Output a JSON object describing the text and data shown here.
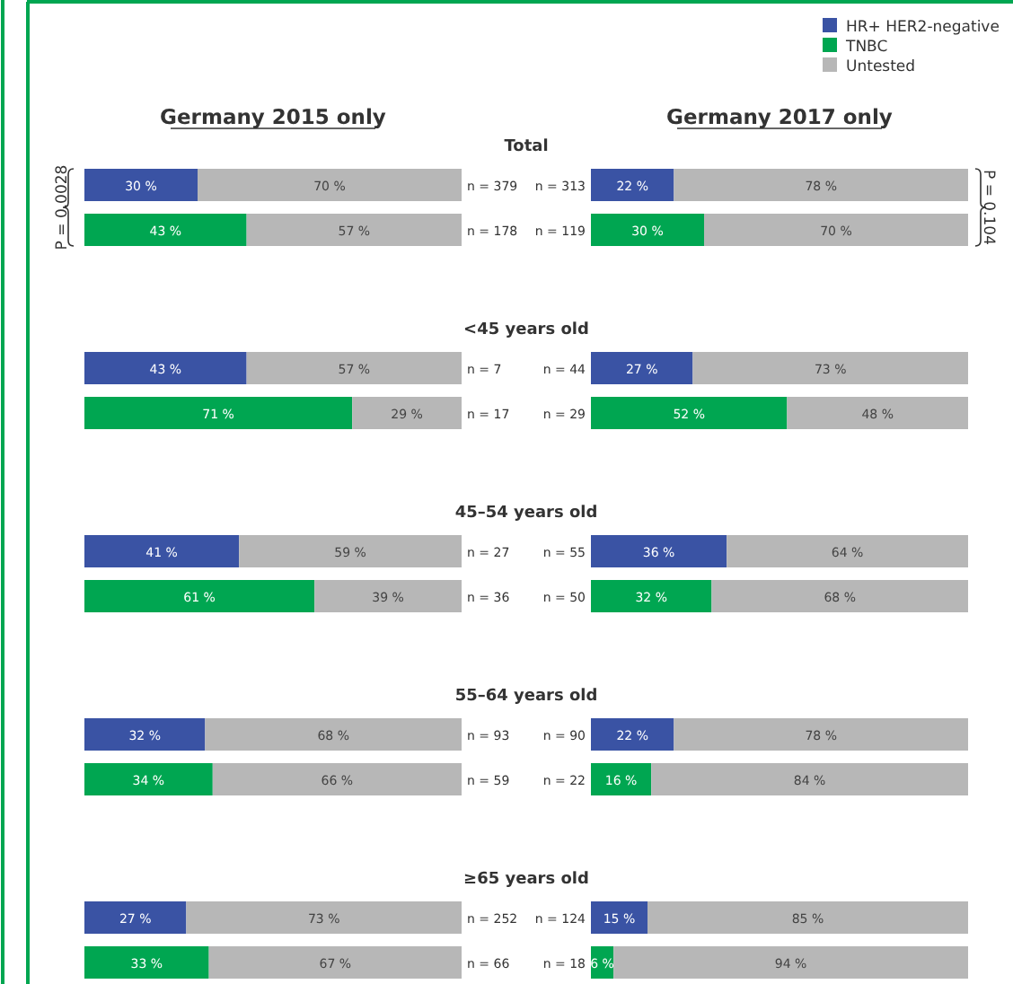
{
  "chart_data": [
    {
      "type": "bar",
      "orientation": "horizontal",
      "stacked": true,
      "title": "Germany 2015 only",
      "subtitle": "Total",
      "categories": [
        "n = 379",
        "n = 178"
      ],
      "xlim": [
        0,
        100
      ],
      "tick_labels": "y",
      "legend": false,
      "annotations": [
        "P = 0.0028"
      ],
      "series": [
        {
          "color": "#3a53a4",
          "values": [
            30,
            null
          ],
          "value_labels": [
            "30 %",
            null
          ]
        },
        {
          "color": "#00a651",
          "values": [
            null,
            43
          ],
          "value_labels": [
            null,
            "43 %"
          ]
        },
        {
          "color": "#b7b7b7",
          "values": [
            70,
            57
          ],
          "value_labels": [
            "70 %",
            "57 %"
          ]
        }
      ]
    },
    {
      "type": "bar",
      "orientation": "horizontal",
      "stacked": true,
      "title": "Germany 2017 only",
      "categories": [
        "n = 313",
        "n = 119"
      ],
      "xlim": [
        0,
        100
      ],
      "tick_labels": "y",
      "legend": "top right",
      "annotations": [
        "P = 0.104"
      ],
      "series": [
        {
          "name": "HR+ HER2-negative",
          "color": "#3a53a4",
          "values": [
            22,
            null
          ],
          "value_labels": [
            "22 %",
            null
          ]
        },
        {
          "name": "TNBC",
          "color": "#00a651",
          "values": [
            null,
            30
          ],
          "value_labels": [
            null,
            "30 %"
          ]
        },
        {
          "name": "Untested",
          "color": "#b7b7b7",
          "values": [
            78,
            70
          ],
          "value_labels": [
            "78 %",
            "70 %"
          ]
        }
      ]
    },
    {
      "type": "bar",
      "orientation": "horizontal",
      "stacked": true,
      "subtitle": "<45 years old",
      "categories": [
        "n = 7",
        "n = 17"
      ],
      "xlim": [
        0,
        100
      ],
      "tick_labels": "y",
      "series": [
        {
          "color": "#3a53a4",
          "values": [
            43,
            null
          ],
          "value_labels": [
            "43 %",
            null
          ]
        },
        {
          "color": "#00a651",
          "values": [
            null,
            71
          ],
          "value_labels": [
            null,
            "71 %"
          ]
        },
        {
          "color": "#b7b7b7",
          "values": [
            57,
            29
          ],
          "value_labels": [
            "57 %",
            "29 %"
          ]
        }
      ]
    },
    {
      "type": "bar",
      "orientation": "horizontal",
      "stacked": true,
      "categories": [
        "n = 44",
        "n = 29"
      ],
      "xlim": [
        0,
        100
      ],
      "tick_labels": "y",
      "series": [
        {
          "color": "#3a53a4",
          "values": [
            27,
            null
          ],
          "value_labels": [
            "27 %",
            null
          ]
        },
        {
          "color": "#00a651",
          "values": [
            null,
            52
          ],
          "value_labels": [
            null,
            "52 %"
          ]
        },
        {
          "color": "#b7b7b7",
          "values": [
            73,
            48
          ],
          "value_labels": [
            "73 %",
            "48 %"
          ]
        }
      ]
    },
    {
      "type": "bar",
      "orientation": "horizontal",
      "stacked": true,
      "subtitle": "45–54 years old",
      "categories": [
        "n = 27",
        "n = 36"
      ],
      "xlim": [
        0,
        100
      ],
      "tick_labels": "y",
      "series": [
        {
          "color": "#3a53a4",
          "values": [
            41,
            null
          ],
          "value_labels": [
            "41 %",
            null
          ]
        },
        {
          "color": "#00a651",
          "values": [
            null,
            61
          ],
          "value_labels": [
            null,
            "61 %"
          ]
        },
        {
          "color": "#b7b7b7",
          "values": [
            59,
            39
          ],
          "value_labels": [
            "59 %",
            "39 %"
          ]
        }
      ]
    },
    {
      "type": "bar",
      "orientation": "horizontal",
      "stacked": true,
      "categories": [
        "n = 55",
        "n = 50"
      ],
      "xlim": [
        0,
        100
      ],
      "tick_labels": "y",
      "series": [
        {
          "color": "#3a53a4",
          "values": [
            36,
            null
          ],
          "value_labels": [
            "36 %",
            null
          ]
        },
        {
          "color": "#00a651",
          "values": [
            null,
            32
          ],
          "value_labels": [
            null,
            "32 %"
          ]
        },
        {
          "color": "#b7b7b7",
          "values": [
            64,
            68
          ],
          "value_labels": [
            "64 %",
            "68 %"
          ]
        }
      ]
    },
    {
      "type": "bar",
      "orientation": "horizontal",
      "stacked": true,
      "subtitle": "55–64 years old",
      "categories": [
        "n = 93",
        "n = 59"
      ],
      "xlim": [
        0,
        100
      ],
      "tick_labels": "y",
      "series": [
        {
          "color": "#3a53a4",
          "values": [
            32,
            null
          ],
          "value_labels": [
            "32 %",
            null
          ]
        },
        {
          "color": "#00a651",
          "values": [
            null,
            34
          ],
          "value_labels": [
            null,
            "34 %"
          ]
        },
        {
          "color": "#b7b7b7",
          "values": [
            68,
            66
          ],
          "value_labels": [
            "68 %",
            "66 %"
          ]
        }
      ]
    },
    {
      "type": "bar",
      "orientation": "horizontal",
      "stacked": true,
      "categories": [
        "n = 90",
        "n = 22"
      ],
      "xlim": [
        0,
        100
      ],
      "tick_labels": "y",
      "series": [
        {
          "color": "#3a53a4",
          "values": [
            22,
            null
          ],
          "value_labels": [
            "22 %",
            null
          ]
        },
        {
          "color": "#00a651",
          "values": [
            null,
            16
          ],
          "value_labels": [
            null,
            "16 %"
          ]
        },
        {
          "color": "#b7b7b7",
          "values": [
            78,
            84
          ],
          "value_labels": [
            "78 %",
            "84 %"
          ]
        }
      ]
    },
    {
      "type": "bar",
      "orientation": "horizontal",
      "stacked": true,
      "subtitle": "≥65 years old",
      "categories": [
        "n = 252",
        "n = 66"
      ],
      "xlim": [
        0,
        100
      ],
      "tick_labels": "y",
      "series": [
        {
          "color": "#3a53a4",
          "values": [
            27,
            null
          ],
          "value_labels": [
            "27 %",
            null
          ]
        },
        {
          "color": "#00a651",
          "values": [
            null,
            33
          ],
          "value_labels": [
            null,
            "33 %"
          ]
        },
        {
          "color": "#b7b7b7",
          "values": [
            73,
            67
          ],
          "value_labels": [
            "73 %",
            "67 %"
          ]
        }
      ]
    },
    {
      "type": "bar",
      "orientation": "horizontal",
      "stacked": true,
      "categories": [
        "n = 124",
        "n = 18"
      ],
      "xlim": [
        0,
        100
      ],
      "tick_labels": "y",
      "series": [
        {
          "color": "#3a53a4",
          "values": [
            15,
            null
          ],
          "value_labels": [
            "15 %",
            null
          ]
        },
        {
          "color": "#00a651",
          "values": [
            null,
            6
          ],
          "value_labels": [
            null,
            "6 %"
          ]
        },
        {
          "color": "#b7b7b7",
          "values": [
            85,
            94
          ],
          "value_labels": [
            "85 %",
            "94 %"
          ]
        }
      ]
    }
  ]
}
